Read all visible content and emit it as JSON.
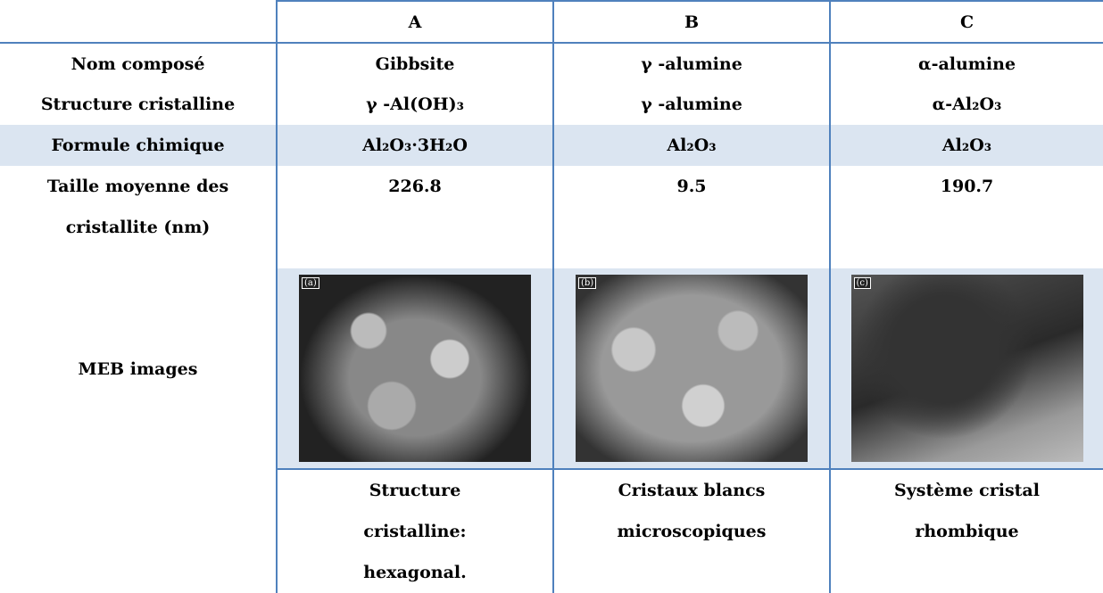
{
  "table": {
    "columns": [
      "A",
      "B",
      "C"
    ],
    "rows": [
      {
        "label": "Nom composé",
        "cells": [
          "Gibbsite",
          "γ -alumine",
          "α-alumine"
        ]
      },
      {
        "label": "Structure cristalline",
        "cells": [
          "γ -Al(OH)₃",
          "γ -alumine",
          "α-Al₂O₃"
        ]
      },
      {
        "label": "Formule chimique",
        "cells": [
          "Al₂O₃·3H₂O",
          "Al₂O₃",
          "Al₂O₃"
        ]
      },
      {
        "label": "Taille moyenne des cristallite (nm)",
        "cells": [
          "226.8",
          "9.5",
          "190.7"
        ]
      }
    ],
    "images": {
      "label": "MEB images",
      "tags": [
        "(a)",
        "(b)",
        "(c)"
      ]
    },
    "notes": [
      "Structure cristalline: hexagonal.",
      "Cristaux blancs microscopiques",
      "Système cristal rhombique"
    ]
  }
}
